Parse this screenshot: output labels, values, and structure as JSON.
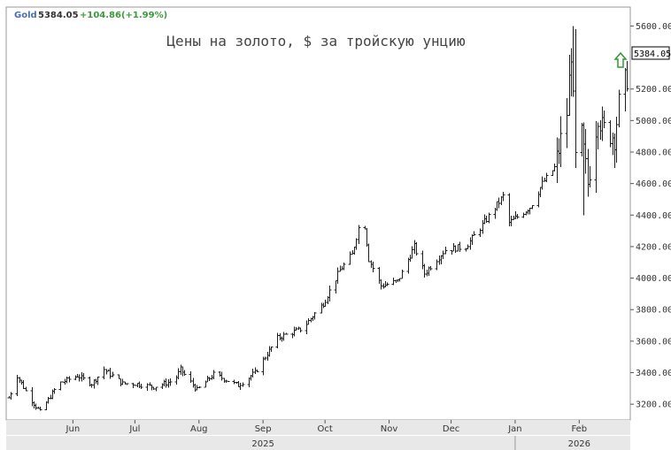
{
  "legend": {
    "symbol": "Gold",
    "price": "5384.05",
    "change": "+104.86(+1.99%)"
  },
  "colors": {
    "bar": "#1f1f1f",
    "up_arrow": "#2e9a2e",
    "legend_symbol": "#4a6fb3",
    "legend_change": "#3c9a3c"
  },
  "chart_data": {
    "type": "ohlc",
    "title": "Цены на золото, $ за тройскую унцию",
    "last_value_label": "5384.05",
    "ylim": [
      3100,
      5720
    ],
    "yticks": [
      3200,
      3400,
      3600,
      3800,
      4000,
      4200,
      4400,
      4600,
      4800,
      5000,
      5200,
      5600
    ],
    "ytick_labels": [
      "3200.00",
      "3400.00",
      "3600.00",
      "3800.00",
      "4000.00",
      "4200.00",
      "4400.00",
      "4600.00",
      "4800.00",
      "5000.00",
      "5200.00",
      "5600.00"
    ],
    "x_start": "2025-05-01",
    "x_end": "2026-02-24",
    "month_ticks": [
      {
        "date": "2025-06-01",
        "label": "Jun"
      },
      {
        "date": "2025-07-01",
        "label": "Jul"
      },
      {
        "date": "2025-08-01",
        "label": "Aug"
      },
      {
        "date": "2025-09-01",
        "label": "Sep"
      },
      {
        "date": "2025-10-01",
        "label": "Oct"
      },
      {
        "date": "2025-11-01",
        "label": "Nov"
      },
      {
        "date": "2025-12-01",
        "label": "Dec"
      },
      {
        "date": "2026-01-01",
        "label": "Jan"
      },
      {
        "date": "2026-02-01",
        "label": "Feb"
      }
    ],
    "year_labels": [
      {
        "date": "2025-09-01",
        "label": "2025"
      },
      {
        "date": "2026-02-01",
        "label": "2026"
      }
    ],
    "grid": false,
    "close_anchors": [
      [
        "2025-05-01",
        3240
      ],
      [
        "2025-05-05",
        3380
      ],
      [
        "2025-05-10",
        3260
      ],
      [
        "2025-05-16",
        3150
      ],
      [
        "2025-05-25",
        3330
      ],
      [
        "2025-06-03",
        3380
      ],
      [
        "2025-06-10",
        3330
      ],
      [
        "2025-06-16",
        3420
      ],
      [
        "2025-06-25",
        3330
      ],
      [
        "2025-07-01",
        3330
      ],
      [
        "2025-07-10",
        3310
      ],
      [
        "2025-07-20",
        3350
      ],
      [
        "2025-07-23",
        3420
      ],
      [
        "2025-07-31",
        3290
      ],
      [
        "2025-08-08",
        3390
      ],
      [
        "2025-08-20",
        3320
      ],
      [
        "2025-08-28",
        3400
      ],
      [
        "2025-09-08",
        3620
      ],
      [
        "2025-09-20",
        3680
      ],
      [
        "2025-09-30",
        3840
      ],
      [
        "2025-10-08",
        4050
      ],
      [
        "2025-10-14",
        4150
      ],
      [
        "2025-10-17",
        4320
      ],
      [
        "2025-10-20",
        4330
      ],
      [
        "2025-10-22",
        4120
      ],
      [
        "2025-10-28",
        3950
      ],
      [
        "2025-11-05",
        3980
      ],
      [
        "2025-11-13",
        4200
      ],
      [
        "2025-11-18",
        4030
      ],
      [
        "2025-11-28",
        4180
      ],
      [
        "2025-12-08",
        4200
      ],
      [
        "2025-12-15",
        4320
      ],
      [
        "2025-12-26",
        4520
      ],
      [
        "2025-12-29",
        4350
      ],
      [
        "2026-01-08",
        4450
      ],
      [
        "2026-01-14",
        4600
      ],
      [
        "2026-01-20",
        4700
      ],
      [
        "2026-01-26",
        5050
      ],
      [
        "2026-01-28",
        5450
      ],
      [
        "2026-01-30",
        4750
      ],
      [
        "2026-02-02",
        4900
      ],
      [
        "2026-02-05",
        4600
      ],
      [
        "2026-02-10",
        5050
      ],
      [
        "2026-02-12",
        4950
      ],
      [
        "2026-02-18",
        4900
      ],
      [
        "2026-02-20",
        5100
      ],
      [
        "2026-02-24",
        5280
      ]
    ]
  }
}
